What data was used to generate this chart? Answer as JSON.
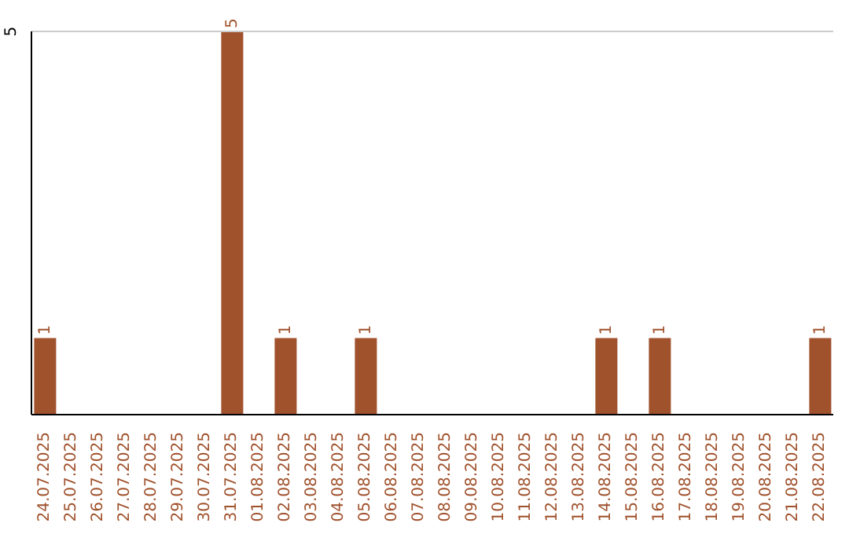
{
  "chart_data": {
    "type": "bar",
    "categories": [
      "24.07.2025",
      "25.07.2025",
      "26.07.2025",
      "27.07.2025",
      "28.07.2025",
      "29.07.2025",
      "30.07.2025",
      "31.07.2025",
      "01.08.2025",
      "02.08.2025",
      "03.08.2025",
      "04.08.2025",
      "05.08.2025",
      "06.08.2025",
      "07.08.2025",
      "08.08.2025",
      "09.08.2025",
      "10.08.2025",
      "11.08.2025",
      "12.08.2025",
      "13.08.2025",
      "14.08.2025",
      "15.08.2025",
      "16.08.2025",
      "17.08.2025",
      "18.08.2025",
      "19.08.2025",
      "20.08.2025",
      "21.08.2025",
      "22.08.2025"
    ],
    "values": [
      1,
      0,
      0,
      0,
      0,
      0,
      0,
      5,
      0,
      1,
      0,
      0,
      1,
      0,
      0,
      0,
      0,
      0,
      0,
      0,
      0,
      1,
      0,
      1,
      0,
      0,
      0,
      0,
      0,
      1
    ],
    "color": "#a0522d",
    "ylim": [
      0,
      5
    ],
    "yticks": [
      5
    ],
    "ref_lines": [
      {
        "axis": "y",
        "value": 5,
        "color": "#cccccc"
      }
    ],
    "value_labels": [
      "1",
      null,
      null,
      null,
      null,
      null,
      null,
      "5",
      null,
      "1",
      null,
      null,
      "1",
      null,
      null,
      null,
      null,
      null,
      null,
      null,
      null,
      "1",
      null,
      "1",
      null,
      null,
      null,
      null,
      null,
      "1"
    ]
  }
}
